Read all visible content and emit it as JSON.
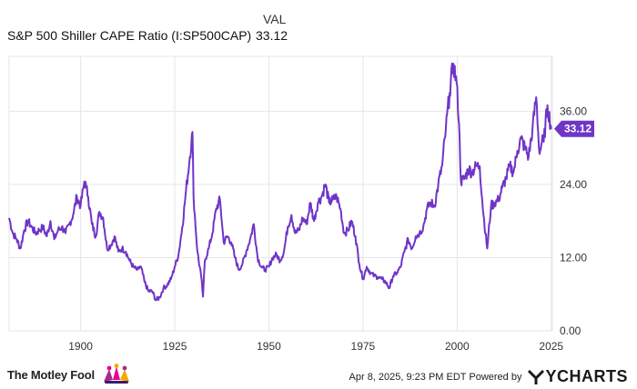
{
  "header": {
    "val_label": "VAL",
    "series_name": "S&P 500 Shiller CAPE Ratio (I:SP500CAP)",
    "series_value": "33.12"
  },
  "footer": {
    "brand": "The Motley Fool",
    "timestamp": "Apr 8, 2025, 9:23 PM EDT Powered by",
    "provider": "YCHARTS"
  },
  "colors": {
    "line": "#6f35c7",
    "badge": "#6f35c7",
    "grid": "#e6e6e6"
  },
  "chart_data": {
    "type": "line",
    "title": "",
    "xlabel": "",
    "ylabel": "",
    "xlim": [
      1881,
      2025.3
    ],
    "ylim": [
      0,
      45
    ],
    "x_ticks": [
      "1900",
      "1925",
      "1950",
      "1975",
      "2000",
      "2025"
    ],
    "y_ticks": [
      "0.00",
      "12.00",
      "24.00",
      "36.00"
    ],
    "current_value_label": "33.12",
    "grid": true,
    "series": [
      {
        "x": [
          1881,
          1882,
          1883,
          1884,
          1885,
          1886,
          1887,
          1888,
          1889,
          1890,
          1891,
          1892,
          1893,
          1894,
          1895,
          1896,
          1897,
          1898,
          1899,
          1900,
          1901,
          1901.5,
          1902,
          1903,
          1904,
          1905,
          1906,
          1907,
          1908,
          1909,
          1910,
          1911,
          1912,
          1913,
          1914,
          1915,
          1916,
          1917,
          1918,
          1919,
          1920,
          1921,
          1922,
          1923,
          1924,
          1925,
          1926,
          1927,
          1928,
          1929,
          1929.7,
          1930,
          1931,
          1932,
          1932.5,
          1933,
          1934,
          1935,
          1936,
          1937,
          1938,
          1939,
          1940,
          1941,
          1942,
          1943,
          1944,
          1945,
          1946,
          1947,
          1948,
          1949,
          1950,
          1951,
          1952,
          1953,
          1954,
          1955,
          1956,
          1957,
          1958,
          1959,
          1960,
          1961,
          1962,
          1963,
          1964,
          1965,
          1966,
          1967,
          1968,
          1969,
          1970,
          1971,
          1972,
          1973,
          1974,
          1975,
          1976,
          1977,
          1978,
          1979,
          1980,
          1981,
          1982,
          1983,
          1984,
          1985,
          1986,
          1987,
          1988,
          1989,
          1990,
          1991,
          1992,
          1993,
          1994,
          1995,
          1996,
          1997,
          1998,
          1999,
          1999.9,
          2000.5,
          2001,
          2002,
          2003,
          2004,
          2005,
          2006,
          2007,
          2008,
          2009,
          2010,
          2011,
          2012,
          2013,
          2014,
          2015,
          2016,
          2017,
          2018,
          2019,
          2020,
          2021,
          2021.9,
          2022.5,
          2023,
          2024,
          2025
        ],
        "y": [
          18.5,
          16.0,
          15.0,
          13.5,
          16.5,
          18.0,
          17.0,
          16.0,
          16.5,
          17.0,
          15.5,
          18.0,
          15.0,
          16.5,
          17.0,
          16.0,
          17.5,
          19.0,
          22.0,
          20.5,
          24.5,
          23.5,
          22.0,
          17.5,
          15.5,
          19.5,
          18.5,
          13.5,
          14.0,
          15.5,
          13.0,
          13.5,
          13.0,
          11.5,
          10.5,
          10.0,
          10.5,
          8.0,
          6.5,
          6.5,
          5.0,
          5.5,
          7.0,
          7.5,
          8.5,
          10.5,
          12.5,
          17.0,
          23.0,
          28.5,
          32.6,
          22.0,
          13.0,
          9.0,
          5.6,
          11.5,
          13.5,
          16.0,
          20.0,
          21.5,
          14.5,
          15.5,
          14.5,
          12.0,
          10.0,
          11.0,
          13.0,
          15.0,
          17.5,
          12.0,
          10.5,
          10.0,
          10.5,
          12.0,
          12.5,
          11.5,
          13.0,
          17.0,
          19.0,
          16.0,
          16.5,
          18.5,
          17.5,
          21.0,
          18.0,
          21.0,
          22.0,
          24.0,
          21.0,
          21.5,
          22.0,
          20.0,
          16.0,
          16.5,
          18.0,
          15.5,
          11.0,
          8.5,
          10.5,
          9.5,
          9.0,
          8.8,
          8.5,
          8.0,
          7.0,
          9.0,
          9.5,
          10.5,
          13.0,
          15.0,
          13.5,
          15.5,
          16.0,
          17.0,
          20.0,
          21.0,
          20.5,
          24.0,
          27.0,
          33.0,
          39.0,
          43.8,
          40.5,
          34.0,
          24.5,
          25.0,
          26.5,
          26.0,
          27.0,
          27.0,
          19.0,
          13.5,
          20.5,
          21.0,
          21.5,
          23.5,
          25.0,
          27.0,
          26.0,
          29.5,
          31.5,
          30.0,
          28.5,
          33.0,
          38.3,
          29.0,
          31.0,
          31.0,
          37.0,
          33.1
        ]
      }
    ]
  }
}
